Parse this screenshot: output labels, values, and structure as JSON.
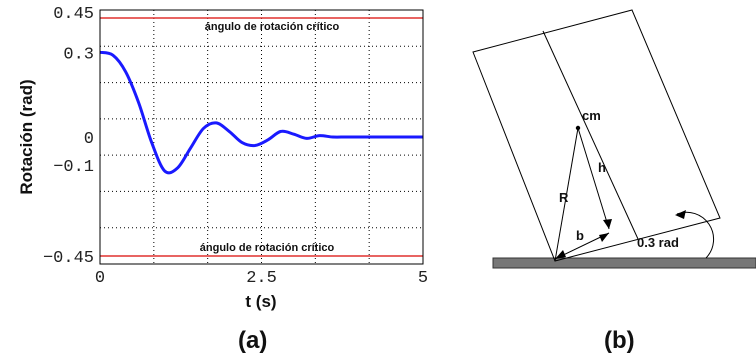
{
  "chart_data": {
    "type": "line",
    "xlabel": "t (s)",
    "ylabel": "Rotación (rad)",
    "xlim": [
      0,
      5
    ],
    "ylim": [
      -0.45,
      0.45
    ],
    "grid": true,
    "x_ticks": [
      "0",
      "2.5",
      "5"
    ],
    "y_ticks": [
      "0.45",
      "0.3",
      "0",
      "−0.1",
      "−0.45"
    ],
    "y_tick_values": [
      0.45,
      0.3,
      0,
      -0.1,
      -0.45
    ],
    "x_tick_values": [
      0,
      2.5,
      5
    ],
    "series": [
      {
        "color": "#1a1aff",
        "x": [
          0,
          0.2,
          0.4,
          0.6,
          0.8,
          1.0,
          1.2,
          1.4,
          1.6,
          1.8,
          2.0,
          2.2,
          2.4,
          2.6,
          2.8,
          3.0,
          3.2,
          3.4,
          3.6,
          3.8,
          4.0,
          4.5,
          5.0
        ],
        "y": [
          0.3,
          0.29,
          0.23,
          0.12,
          -0.02,
          -0.12,
          -0.11,
          -0.04,
          0.03,
          0.05,
          0.02,
          -0.02,
          -0.03,
          -0.01,
          0.02,
          0.01,
          -0.005,
          0.005,
          0.0,
          0.0,
          0.0,
          0.0,
          0.0
        ]
      }
    ],
    "reference_lines": [
      {
        "y": 0.45,
        "color": "#e0302f",
        "label": "ángulo de rotación crítico"
      },
      {
        "y": -0.45,
        "color": "#e0302f",
        "label": "ángulo de rotación crítico"
      }
    ]
  },
  "panel_labels": {
    "a": "(a)",
    "b": "(b)"
  },
  "diagram": {
    "cm_label": "cm",
    "h_label": "h",
    "R_label": "R",
    "b_label": "b",
    "angle_label": "0.3 rad"
  }
}
